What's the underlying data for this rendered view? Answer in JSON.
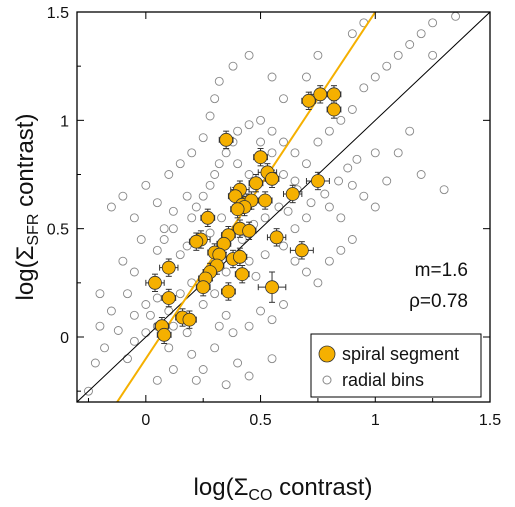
{
  "chart_data": {
    "type": "scatter",
    "xlabel_main": "log(Σ",
    "xlabel_sub": "CO",
    "xlabel_end": " contrast)",
    "ylabel_main": "log(Σ",
    "ylabel_sub": "SFR",
    "ylabel_end": " contrast)",
    "xlim": [
      -0.3,
      1.5
    ],
    "ylim": [
      -0.3,
      1.5
    ],
    "xticks": [
      0,
      0.5,
      1,
      1.5
    ],
    "xtick_labels": [
      "0",
      "0.5",
      "1",
      "1.5"
    ],
    "yticks": [
      0,
      0.5,
      1,
      1.5
    ],
    "ytick_labels": [
      "0",
      "0.5",
      "1",
      "1.5"
    ],
    "annotations": {
      "slope": "m=1.6",
      "rho": "ρ=0.78"
    },
    "legend": {
      "position": "bottom-right",
      "items": [
        "spiral segment",
        "radial bins"
      ]
    },
    "colors": {
      "spiral": "#f5b000",
      "fit_line": "#f5b000",
      "one_to_one": "#000000",
      "radial": "#888888"
    },
    "fit_line": {
      "slope": 1.6,
      "intercept": -0.1
    },
    "one_to_one_line": {
      "slope": 1,
      "intercept": 0
    },
    "series": [
      {
        "name": "spiral segment",
        "points": [
          [
            0.35,
            0.91,
            0.03,
            0.04
          ],
          [
            0.5,
            0.83,
            0.03,
            0.04
          ],
          [
            0.71,
            1.09,
            0.03,
            0.04
          ],
          [
            0.76,
            1.12,
            0.04,
            0.04
          ],
          [
            0.82,
            1.12,
            0.03,
            0.04
          ],
          [
            0.82,
            1.05,
            0.03,
            0.04
          ],
          [
            0.53,
            0.76,
            0.04,
            0.04
          ],
          [
            0.48,
            0.71,
            0.03,
            0.04
          ],
          [
            0.55,
            0.73,
            0.03,
            0.04
          ],
          [
            0.75,
            0.72,
            0.05,
            0.04
          ],
          [
            0.41,
            0.68,
            0.04,
            0.04
          ],
          [
            0.39,
            0.65,
            0.03,
            0.04
          ],
          [
            0.44,
            0.62,
            0.04,
            0.04
          ],
          [
            0.42,
            0.61,
            0.03,
            0.04
          ],
          [
            0.46,
            0.63,
            0.03,
            0.04
          ],
          [
            0.43,
            0.6,
            0.03,
            0.04
          ],
          [
            0.4,
            0.59,
            0.03,
            0.04
          ],
          [
            0.52,
            0.63,
            0.03,
            0.04
          ],
          [
            0.64,
            0.66,
            0.04,
            0.04
          ],
          [
            0.27,
            0.55,
            0.03,
            0.04
          ],
          [
            0.36,
            0.47,
            0.03,
            0.04
          ],
          [
            0.41,
            0.5,
            0.03,
            0.04
          ],
          [
            0.45,
            0.49,
            0.03,
            0.04
          ],
          [
            0.57,
            0.46,
            0.04,
            0.04
          ],
          [
            0.24,
            0.45,
            0.04,
            0.04
          ],
          [
            0.22,
            0.44,
            0.03,
            0.04
          ],
          [
            0.34,
            0.43,
            0.03,
            0.04
          ],
          [
            0.3,
            0.39,
            0.03,
            0.04
          ],
          [
            0.32,
            0.38,
            0.03,
            0.04
          ],
          [
            0.38,
            0.36,
            0.03,
            0.04
          ],
          [
            0.41,
            0.37,
            0.03,
            0.04
          ],
          [
            0.68,
            0.4,
            0.05,
            0.04
          ],
          [
            0.1,
            0.32,
            0.04,
            0.04
          ],
          [
            0.31,
            0.33,
            0.03,
            0.04
          ],
          [
            0.28,
            0.3,
            0.03,
            0.04
          ],
          [
            0.26,
            0.27,
            0.03,
            0.04
          ],
          [
            0.42,
            0.29,
            0.03,
            0.04
          ],
          [
            0.04,
            0.25,
            0.04,
            0.04
          ],
          [
            0.25,
            0.23,
            0.03,
            0.04
          ],
          [
            0.36,
            0.21,
            0.03,
            0.04
          ],
          [
            0.55,
            0.23,
            0.06,
            0.07
          ],
          [
            0.1,
            0.18,
            0.03,
            0.04
          ],
          [
            0.16,
            0.09,
            0.03,
            0.04
          ],
          [
            0.19,
            0.08,
            0.03,
            0.04
          ],
          [
            0.07,
            0.05,
            0.03,
            0.04
          ],
          [
            0.08,
            0.01,
            0.03,
            0.04
          ]
        ]
      },
      {
        "name": "radial bins",
        "points": [
          [
            -0.25,
            -0.25
          ],
          [
            -0.22,
            -0.12
          ],
          [
            -0.18,
            -0.05
          ],
          [
            -0.12,
            0.03
          ],
          [
            -0.05,
            -0.02
          ],
          [
            0.0,
            0.02
          ],
          [
            -0.2,
            0.05
          ],
          [
            -0.15,
            0.12
          ],
          [
            -0.08,
            0.2
          ],
          [
            -0.2,
            0.2
          ],
          [
            -0.1,
            0.35
          ],
          [
            -0.05,
            0.3
          ],
          [
            0.02,
            0.1
          ],
          [
            0.05,
            0.05
          ],
          [
            0.1,
            -0.05
          ],
          [
            0.12,
            0.05
          ],
          [
            0.15,
            0.1
          ],
          [
            0.18,
            0.02
          ],
          [
            0.2,
            -0.08
          ],
          [
            0.25,
            -0.15
          ],
          [
            0.3,
            -0.05
          ],
          [
            0.32,
            0.05
          ],
          [
            0.35,
            0.1
          ],
          [
            0.38,
            0.02
          ],
          [
            0.4,
            -0.12
          ],
          [
            0.45,
            0.05
          ],
          [
            0.5,
            0.12
          ],
          [
            0.55,
            0.08
          ],
          [
            0.6,
            0.15
          ],
          [
            0.05,
            0.4
          ],
          [
            0.08,
            0.45
          ],
          [
            0.12,
            0.5
          ],
          [
            0.15,
            0.38
          ],
          [
            0.18,
            0.42
          ],
          [
            0.2,
            0.55
          ],
          [
            0.22,
            0.6
          ],
          [
            0.25,
            0.65
          ],
          [
            0.28,
            0.7
          ],
          [
            0.3,
            0.75
          ],
          [
            0.32,
            0.8
          ],
          [
            0.35,
            0.85
          ],
          [
            0.38,
            0.9
          ],
          [
            0.4,
            0.95
          ],
          [
            0.45,
            0.98
          ],
          [
            0.5,
            1.0
          ],
          [
            0.55,
            0.95
          ],
          [
            0.6,
            0.9
          ],
          [
            0.65,
            0.85
          ],
          [
            0.7,
            0.8
          ],
          [
            0.75,
            0.9
          ],
          [
            0.8,
            0.95
          ],
          [
            0.85,
            1.0
          ],
          [
            0.9,
            1.05
          ],
          [
            0.95,
            1.15
          ],
          [
            1.0,
            1.2
          ],
          [
            1.05,
            1.25
          ],
          [
            1.1,
            1.3
          ],
          [
            1.15,
            1.35
          ],
          [
            1.2,
            1.4
          ],
          [
            1.25,
            1.45
          ],
          [
            0.9,
            0.7
          ],
          [
            0.95,
            0.65
          ],
          [
            1.0,
            0.6
          ],
          [
            1.05,
            0.72
          ],
          [
            1.2,
            0.75
          ],
          [
            1.3,
            0.68
          ],
          [
            0.85,
            0.55
          ],
          [
            0.8,
            0.6
          ],
          [
            0.7,
            0.55
          ],
          [
            0.65,
            0.5
          ],
          [
            0.6,
            0.42
          ],
          [
            0.65,
            0.35
          ],
          [
            0.7,
            0.3
          ],
          [
            0.75,
            0.25
          ],
          [
            0.8,
            0.35
          ],
          [
            0.85,
            0.4
          ],
          [
            0.9,
            0.45
          ],
          [
            1.0,
            0.85
          ],
          [
            -0.02,
            0.45
          ],
          [
            -0.05,
            0.55
          ],
          [
            -0.1,
            0.65
          ],
          [
            -0.15,
            0.6
          ],
          [
            0.0,
            0.7
          ],
          [
            0.05,
            0.62
          ],
          [
            0.1,
            0.75
          ],
          [
            0.15,
            0.8
          ],
          [
            0.2,
            0.85
          ],
          [
            0.25,
            0.92
          ],
          [
            0.28,
            1.02
          ],
          [
            0.3,
            1.1
          ],
          [
            0.32,
            1.18
          ],
          [
            0.38,
            1.25
          ],
          [
            0.45,
            1.3
          ],
          [
            0.55,
            1.2
          ],
          [
            0.6,
            1.1
          ],
          [
            0.7,
            1.2
          ],
          [
            0.75,
            1.3
          ],
          [
            0.9,
            1.4
          ],
          [
            0.95,
            1.45
          ],
          [
            1.35,
            1.48
          ],
          [
            1.25,
            1.3
          ],
          [
            0.45,
            0.35
          ],
          [
            0.48,
            0.28
          ],
          [
            0.52,
            0.38
          ],
          [
            0.35,
            0.3
          ],
          [
            0.3,
            0.2
          ],
          [
            0.25,
            0.15
          ],
          [
            0.2,
            0.25
          ],
          [
            0.15,
            0.2
          ],
          [
            0.1,
            0.12
          ],
          [
            0.05,
            0.18
          ],
          [
            0.0,
            0.15
          ],
          [
            -0.05,
            0.1
          ],
          [
            0.28,
            0.48
          ],
          [
            0.33,
            0.55
          ],
          [
            0.42,
            0.45
          ],
          [
            0.47,
            0.52
          ],
          [
            0.52,
            0.55
          ],
          [
            0.58,
            0.6
          ],
          [
            0.62,
            0.58
          ],
          [
            0.66,
            0.68
          ],
          [
            0.72,
            0.62
          ],
          [
            0.78,
            0.66
          ],
          [
            0.84,
            0.72
          ],
          [
            0.88,
            0.78
          ],
          [
            0.92,
            0.82
          ],
          [
            0.12,
            -0.15
          ],
          [
            0.22,
            -0.2
          ],
          [
            0.35,
            -0.22
          ],
          [
            0.45,
            -0.18
          ],
          [
            0.55,
            -0.1
          ],
          [
            0.05,
            -0.2
          ],
          [
            -0.08,
            -0.1
          ],
          [
            0.18,
            0.65
          ],
          [
            0.12,
            0.58
          ],
          [
            0.08,
            0.5
          ],
          [
            0.45,
            0.75
          ],
          [
            0.4,
            0.8
          ],
          [
            0.5,
            0.9
          ],
          [
            0.55,
            0.85
          ],
          [
            0.6,
            0.75
          ],
          [
            0.65,
            0.72
          ],
          [
            1.1,
            0.85
          ],
          [
            1.15,
            0.95
          ]
        ]
      }
    ]
  }
}
